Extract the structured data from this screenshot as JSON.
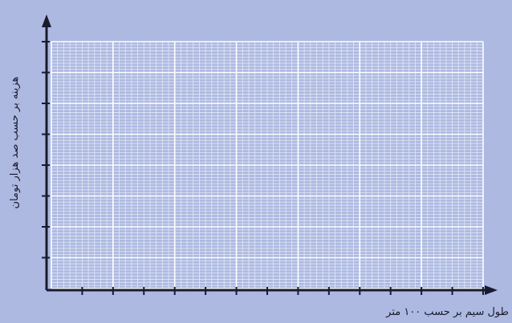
{
  "chart_data": {
    "type": "line",
    "title": "",
    "xlabel": "طول سیم بر حسب ۱۰۰ متر",
    "ylabel": "هزینه بر حسب صد هزار تومان",
    "series": [],
    "grid": true,
    "legend": "none",
    "colors": {
      "background": "#adb9e1",
      "grid_major": "#ffffff",
      "grid_minor": "#e3e8f6",
      "axis": "#1a1a2e"
    },
    "grid_spec": {
      "x_major_divisions": 7,
      "y_major_divisions": 8,
      "minor_per_major": 10
    },
    "x_tick_count": 14,
    "y_tick_count": 8
  }
}
